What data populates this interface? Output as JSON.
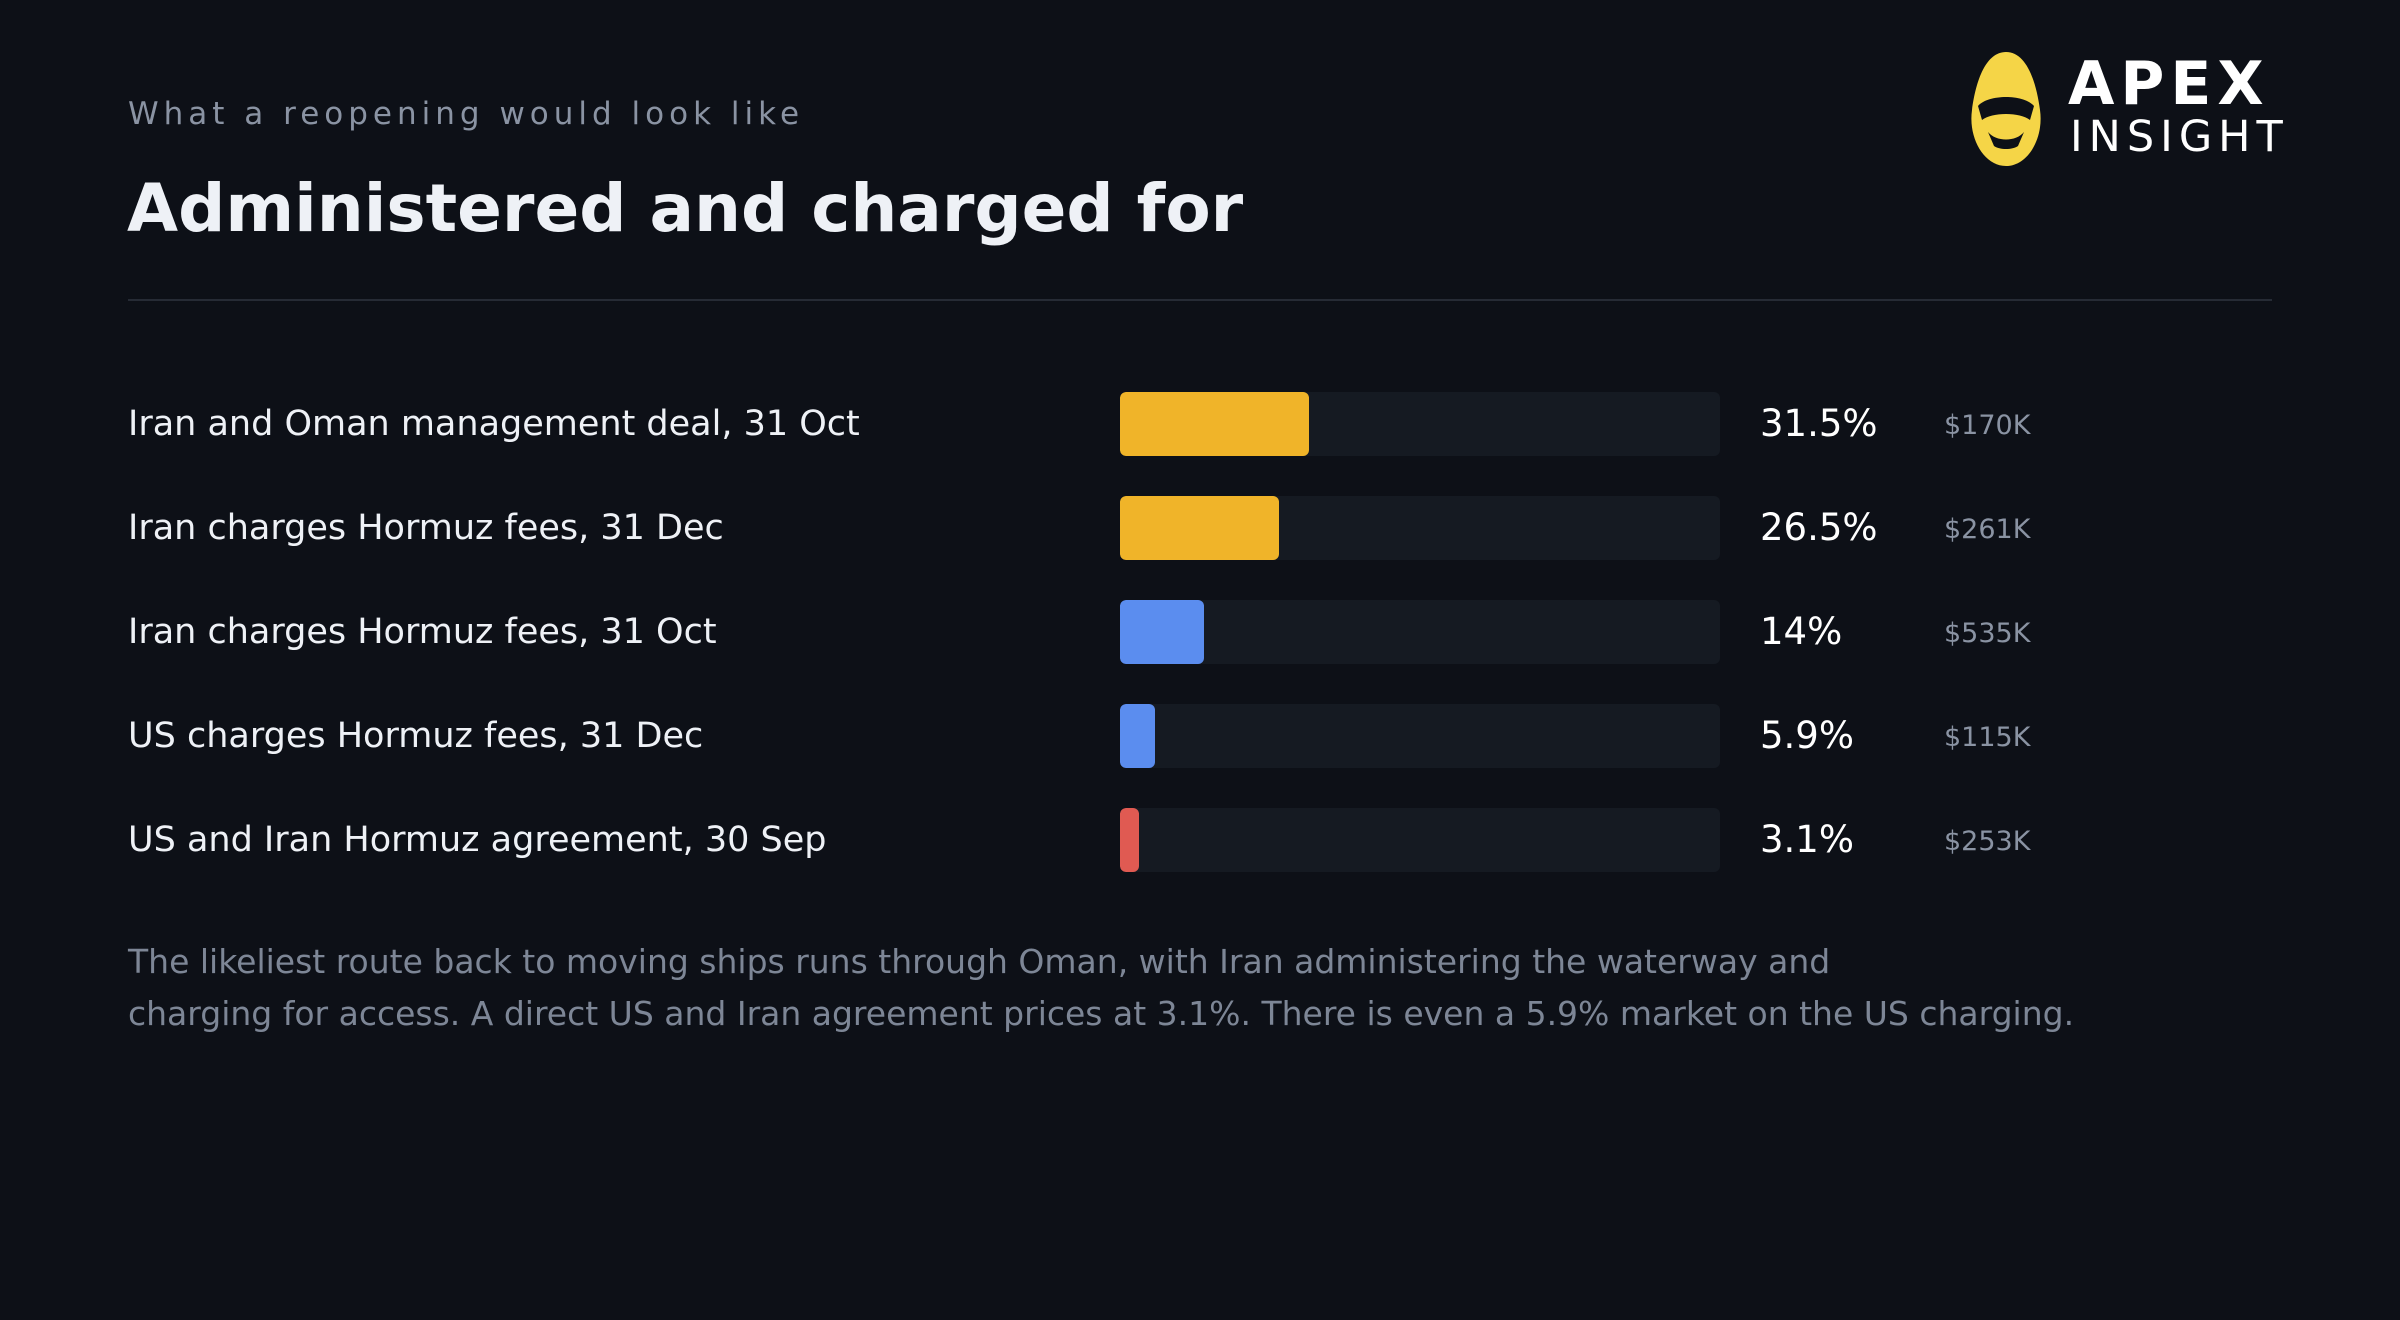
{
  "header": {
    "eyebrow": "What a reopening would look like",
    "title": "Administered and charged for"
  },
  "brand": {
    "word1": "APEX",
    "word2": "INSIGHT",
    "color": "#f5d547"
  },
  "colors": {
    "background": "#0d1017",
    "yellow": "#f0b429",
    "blue": "#5b8def",
    "red": "#e05a52",
    "track": "#151a22"
  },
  "chart_data": {
    "type": "bar",
    "orientation": "horizontal",
    "xlim": [
      0,
      100
    ],
    "rows": [
      {
        "label": "Iran and Oman management deal, 31 Oct",
        "value": 31.5,
        "value_label": "31.5%",
        "volume": "$170K",
        "color": "#f0b429"
      },
      {
        "label": "Iran charges Hormuz fees, 31 Dec",
        "value": 26.5,
        "value_label": "26.5%",
        "volume": "$261K",
        "color": "#f0b429"
      },
      {
        "label": "Iran charges Hormuz fees, 31 Oct",
        "value": 14,
        "value_label": "14%",
        "volume": "$535K",
        "color": "#5b8def"
      },
      {
        "label": "US charges Hormuz fees, 31 Dec",
        "value": 5.9,
        "value_label": "5.9%",
        "volume": "$115K",
        "color": "#5b8def"
      },
      {
        "label": "US and Iran Hormuz agreement, 30 Sep",
        "value": 3.1,
        "value_label": "3.1%",
        "volume": "$253K",
        "color": "#e05a52"
      }
    ]
  },
  "note": {
    "line1": "The likeliest route back to moving ships runs through Oman, with Iran administering the waterway and",
    "line2": "charging for access. A direct US and Iran agreement prices at 3.1%. There is even a 5.9% market on the US charging."
  }
}
